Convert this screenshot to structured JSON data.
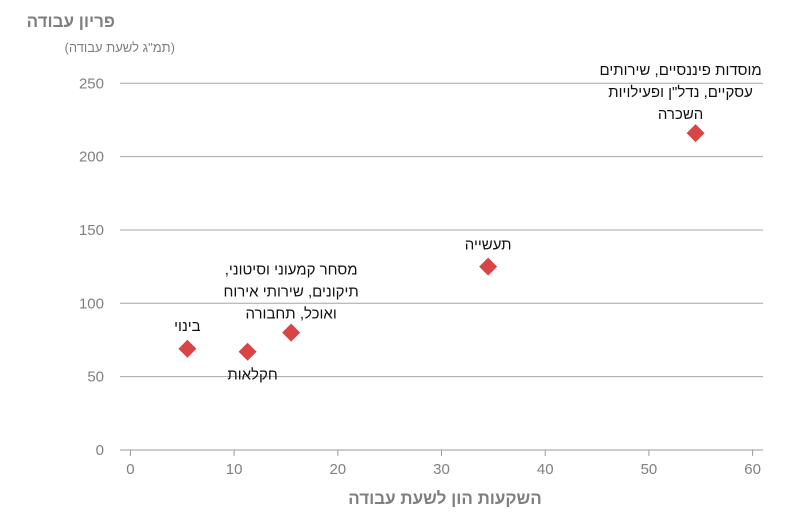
{
  "chart_data": {
    "type": "scatter",
    "title": "",
    "ylabel": "פריון עבודה",
    "ylabel_sub": "(תמ\"ג לשעת עבודה)",
    "xlabel": "השקעות הון לשעת עבודה",
    "xlim": [
      -1,
      61
    ],
    "ylim": [
      0,
      260
    ],
    "x_ticks": [
      0,
      10,
      20,
      30,
      40,
      50,
      60
    ],
    "y_ticks": [
      0,
      50,
      100,
      150,
      200,
      250
    ],
    "grid": "horizontal",
    "marker": "diamond",
    "color": "#d94444",
    "points": [
      {
        "x": 5.5,
        "y": 69,
        "label": [
          "בינוי"
        ]
      },
      {
        "x": 11.3,
        "y": 67,
        "label": [
          "חקלאות"
        ]
      },
      {
        "x": 15.5,
        "y": 80,
        "label": [
          "מסחר קמעוני וסיטוני,",
          "תיקונים, שירותי אירוח",
          "ואוכל, תחבורה"
        ]
      },
      {
        "x": 34.5,
        "y": 125,
        "label": [
          "תעשייה"
        ]
      },
      {
        "x": 54.5,
        "y": 216,
        "label": [
          "מוסדות פיננסיים, שירותים",
          "עסקיים, נדל\"ן ופעילויות",
          "השכרה"
        ]
      }
    ]
  }
}
